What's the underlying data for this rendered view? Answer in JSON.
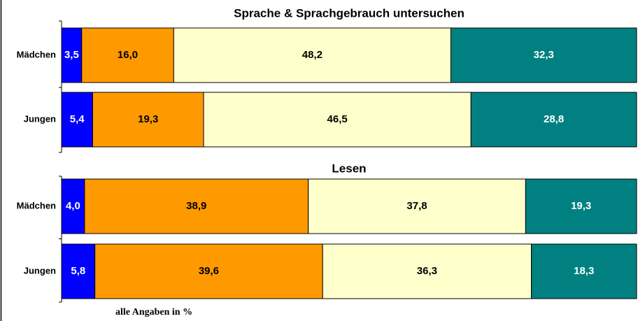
{
  "chart_data": [
    {
      "type": "stacked-bar-horizontal",
      "title": "Sprache & Sprachgebrauch untersuchen",
      "categories": [
        "Mädchen",
        "Jungen"
      ],
      "xlim": [
        0,
        100
      ],
      "series": [
        {
          "color": "#0000ff",
          "values": [
            3.5,
            5.4
          ],
          "value_labels": [
            "3,5",
            "5,4"
          ]
        },
        {
          "color": "#ff9900",
          "values": [
            16.0,
            19.3
          ],
          "value_labels": [
            "16,0",
            "19,3"
          ]
        },
        {
          "color": "#ffffcc",
          "values": [
            48.2,
            46.5
          ],
          "value_labels": [
            "48,2",
            "46,5"
          ]
        },
        {
          "color": "#008080",
          "values": [
            32.3,
            28.8
          ],
          "value_labels": [
            "32,3",
            "28,8"
          ]
        }
      ]
    },
    {
      "type": "stacked-bar-horizontal",
      "title": "Lesen",
      "categories": [
        "Mädchen",
        "Jungen"
      ],
      "xlim": [
        0,
        100
      ],
      "series": [
        {
          "color": "#0000ff",
          "values": [
            4.0,
            5.8
          ],
          "value_labels": [
            "4,0",
            "5,8"
          ]
        },
        {
          "color": "#ff9900",
          "values": [
            38.9,
            39.6
          ],
          "value_labels": [
            "38,9",
            "39,6"
          ]
        },
        {
          "color": "#ffffcc",
          "values": [
            37.8,
            36.3
          ],
          "value_labels": [
            "37,8",
            "36,3"
          ]
        },
        {
          "color": "#008080",
          "values": [
            19.3,
            18.3
          ],
          "value_labels": [
            "19,3",
            "18,3"
          ]
        }
      ]
    }
  ],
  "note": "alle Angaben in %"
}
